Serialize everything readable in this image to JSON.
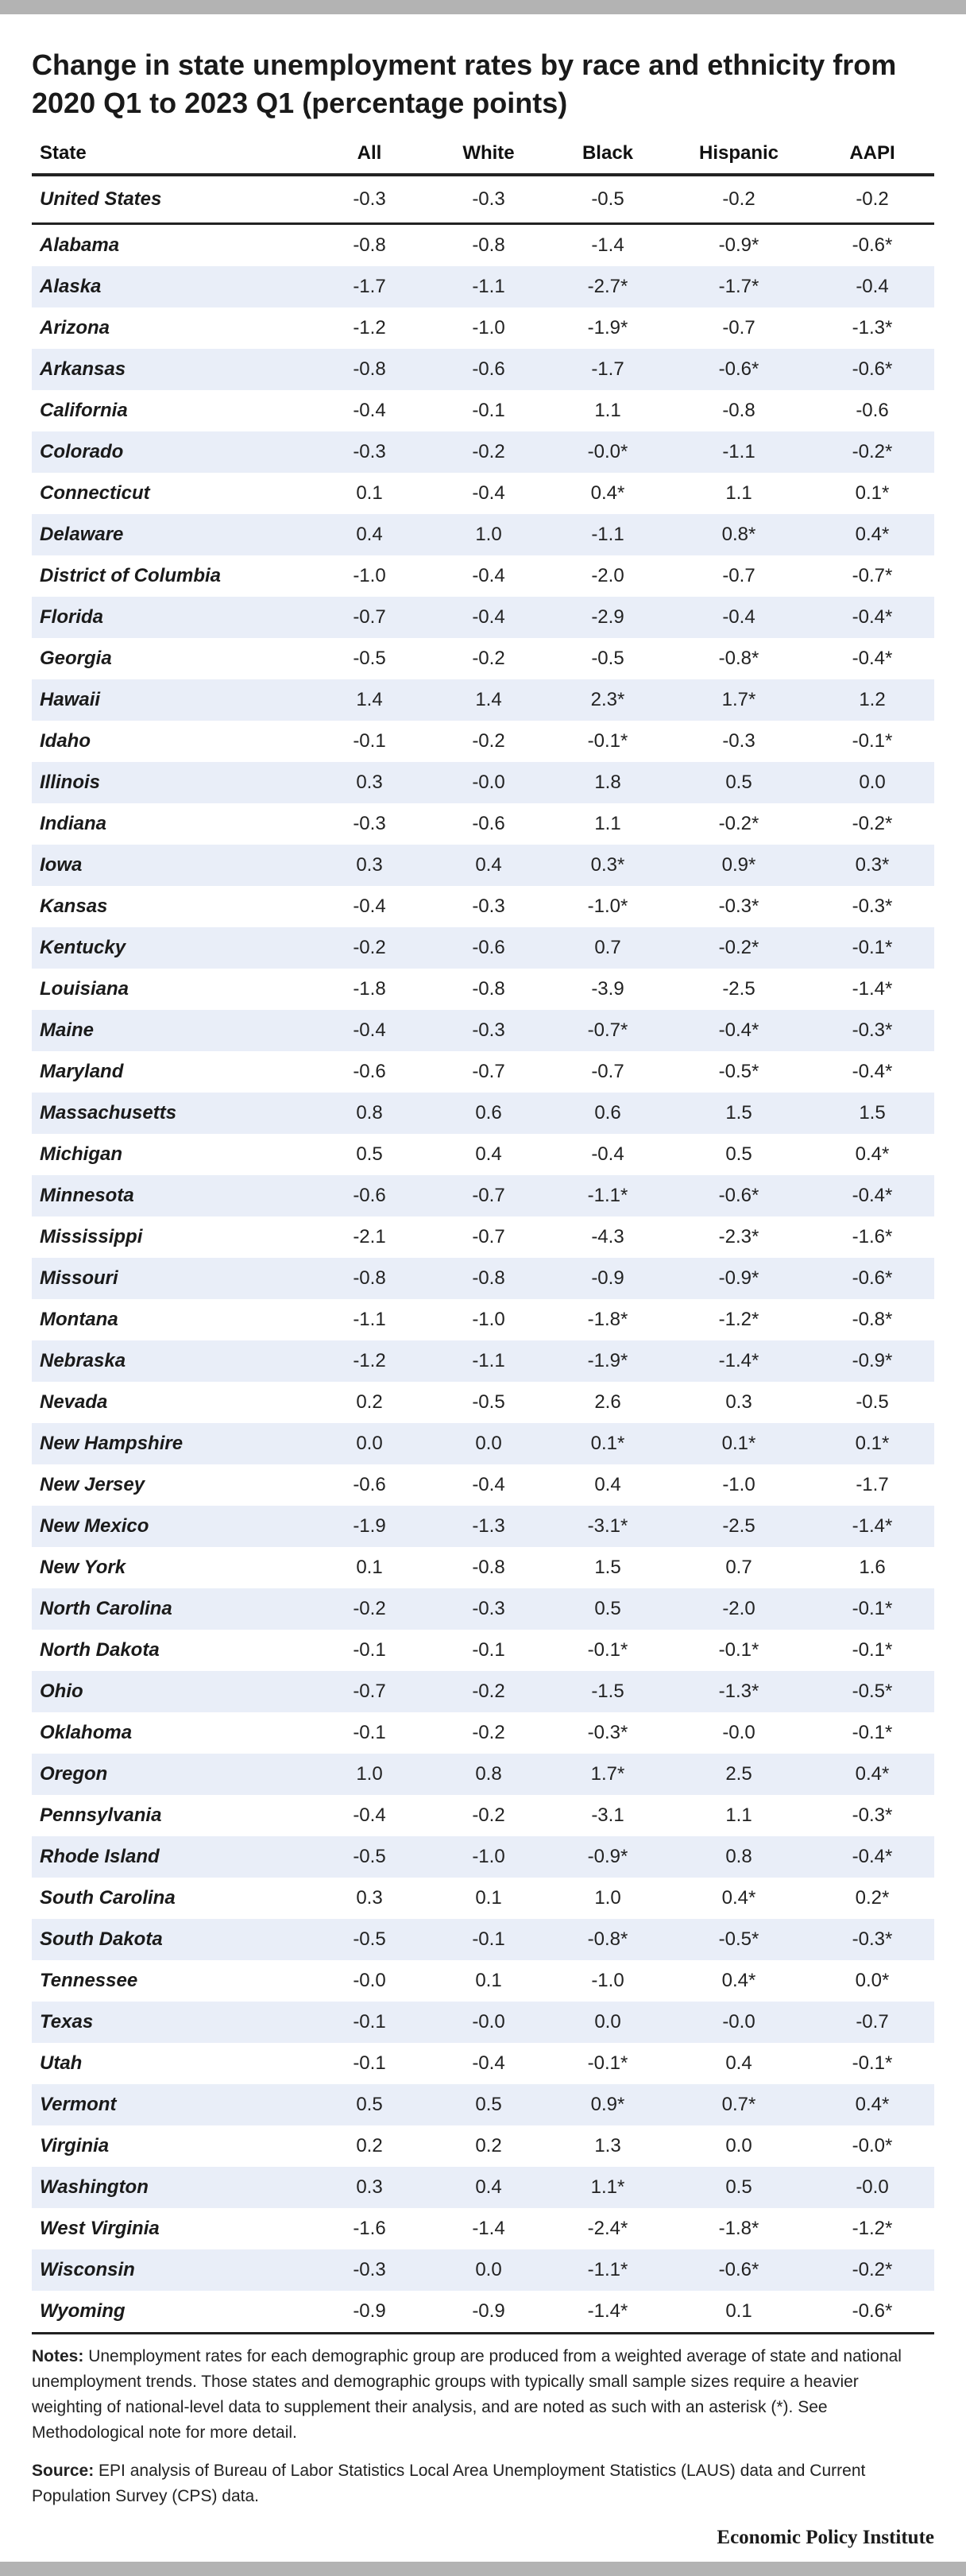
{
  "title": "Change in state unemployment rates by race and ethnicity from 2020 Q1 to 2023 Q1 (percentage points)",
  "notes_label": "Notes:",
  "notes_text": "Unemployment rates for each demographic group are produced from a weighted average of state and national unemployment trends. Those states and demographic groups with typically small sample sizes require a heavier weighting of national-level data to supplement their analysis, and are noted as such with an asterisk (*). See Methodological note for more detail.",
  "source_label": "Source:",
  "source_text": "EPI analysis of Bureau of Labor Statistics Local Area Unemployment Statistics (LAUS) data and Current Population Survey (CPS) data.",
  "brand": "Economic Policy Institute",
  "colors": {
    "row_shade": "#e9eef8",
    "rule": "#222222",
    "frame_bar": "#b3b3b3"
  },
  "chart_data": {
    "type": "table",
    "title": "Change in state unemployment rates by race and ethnicity from 2020 Q1 to 2023 Q1 (percentage points)",
    "columns": [
      "State",
      "All",
      "White",
      "Black",
      "Hispanic",
      "AAPI"
    ],
    "rows": [
      [
        "United States",
        "-0.3",
        "-0.3",
        "-0.5",
        "-0.2",
        "-0.2"
      ],
      [
        "Alabama",
        "-0.8",
        "-0.8",
        "-1.4",
        "-0.9*",
        "-0.6*"
      ],
      [
        "Alaska",
        "-1.7",
        "-1.1",
        "-2.7*",
        "-1.7*",
        "-0.4"
      ],
      [
        "Arizona",
        "-1.2",
        "-1.0",
        "-1.9*",
        "-0.7",
        "-1.3*"
      ],
      [
        "Arkansas",
        "-0.8",
        "-0.6",
        "-1.7",
        "-0.6*",
        "-0.6*"
      ],
      [
        "California",
        "-0.4",
        "-0.1",
        "1.1",
        "-0.8",
        "-0.6"
      ],
      [
        "Colorado",
        "-0.3",
        "-0.2",
        "-0.0*",
        "-1.1",
        "-0.2*"
      ],
      [
        "Connecticut",
        "0.1",
        "-0.4",
        "0.4*",
        "1.1",
        "0.1*"
      ],
      [
        "Delaware",
        "0.4",
        "1.0",
        "-1.1",
        "0.8*",
        "0.4*"
      ],
      [
        "District of Columbia",
        "-1.0",
        "-0.4",
        "-2.0",
        "-0.7",
        "-0.7*"
      ],
      [
        "Florida",
        "-0.7",
        "-0.4",
        "-2.9",
        "-0.4",
        "-0.4*"
      ],
      [
        "Georgia",
        "-0.5",
        "-0.2",
        "-0.5",
        "-0.8*",
        "-0.4*"
      ],
      [
        "Hawaii",
        "1.4",
        "1.4",
        "2.3*",
        "1.7*",
        "1.2"
      ],
      [
        "Idaho",
        "-0.1",
        "-0.2",
        "-0.1*",
        "-0.3",
        "-0.1*"
      ],
      [
        "Illinois",
        "0.3",
        "-0.0",
        "1.8",
        "0.5",
        "0.0"
      ],
      [
        "Indiana",
        "-0.3",
        "-0.6",
        "1.1",
        "-0.2*",
        "-0.2*"
      ],
      [
        "Iowa",
        "0.3",
        "0.4",
        "0.3*",
        "0.9*",
        "0.3*"
      ],
      [
        "Kansas",
        "-0.4",
        "-0.3",
        "-1.0*",
        "-0.3*",
        "-0.3*"
      ],
      [
        "Kentucky",
        "-0.2",
        "-0.6",
        "0.7",
        "-0.2*",
        "-0.1*"
      ],
      [
        "Louisiana",
        "-1.8",
        "-0.8",
        "-3.9",
        "-2.5",
        "-1.4*"
      ],
      [
        "Maine",
        "-0.4",
        "-0.3",
        "-0.7*",
        "-0.4*",
        "-0.3*"
      ],
      [
        "Maryland",
        "-0.6",
        "-0.7",
        "-0.7",
        "-0.5*",
        "-0.4*"
      ],
      [
        "Massachusetts",
        "0.8",
        "0.6",
        "0.6",
        "1.5",
        "1.5"
      ],
      [
        "Michigan",
        "0.5",
        "0.4",
        "-0.4",
        "0.5",
        "0.4*"
      ],
      [
        "Minnesota",
        "-0.6",
        "-0.7",
        "-1.1*",
        "-0.6*",
        "-0.4*"
      ],
      [
        "Mississippi",
        "-2.1",
        "-0.7",
        "-4.3",
        "-2.3*",
        "-1.6*"
      ],
      [
        "Missouri",
        "-0.8",
        "-0.8",
        "-0.9",
        "-0.9*",
        "-0.6*"
      ],
      [
        "Montana",
        "-1.1",
        "-1.0",
        "-1.8*",
        "-1.2*",
        "-0.8*"
      ],
      [
        "Nebraska",
        "-1.2",
        "-1.1",
        "-1.9*",
        "-1.4*",
        "-0.9*"
      ],
      [
        "Nevada",
        "0.2",
        "-0.5",
        "2.6",
        "0.3",
        "-0.5"
      ],
      [
        "New Hampshire",
        "0.0",
        "0.0",
        "0.1*",
        "0.1*",
        "0.1*"
      ],
      [
        "New Jersey",
        "-0.6",
        "-0.4",
        "0.4",
        "-1.0",
        "-1.7"
      ],
      [
        "New Mexico",
        "-1.9",
        "-1.3",
        "-3.1*",
        "-2.5",
        "-1.4*"
      ],
      [
        "New York",
        "0.1",
        "-0.8",
        "1.5",
        "0.7",
        "1.6"
      ],
      [
        "North Carolina",
        "-0.2",
        "-0.3",
        "0.5",
        "-2.0",
        "-0.1*"
      ],
      [
        "North Dakota",
        "-0.1",
        "-0.1",
        "-0.1*",
        "-0.1*",
        "-0.1*"
      ],
      [
        "Ohio",
        "-0.7",
        "-0.2",
        "-1.5",
        "-1.3*",
        "-0.5*"
      ],
      [
        "Oklahoma",
        "-0.1",
        "-0.2",
        "-0.3*",
        "-0.0",
        "-0.1*"
      ],
      [
        "Oregon",
        "1.0",
        "0.8",
        "1.7*",
        "2.5",
        "0.4*"
      ],
      [
        "Pennsylvania",
        "-0.4",
        "-0.2",
        "-3.1",
        "1.1",
        "-0.3*"
      ],
      [
        "Rhode Island",
        "-0.5",
        "-1.0",
        "-0.9*",
        "0.8",
        "-0.4*"
      ],
      [
        "South Carolina",
        "0.3",
        "0.1",
        "1.0",
        "0.4*",
        "0.2*"
      ],
      [
        "South Dakota",
        "-0.5",
        "-0.1",
        "-0.8*",
        "-0.5*",
        "-0.3*"
      ],
      [
        "Tennessee",
        "-0.0",
        "0.1",
        "-1.0",
        "0.4*",
        "0.0*"
      ],
      [
        "Texas",
        "-0.1",
        "-0.0",
        "0.0",
        "-0.0",
        "-0.7"
      ],
      [
        "Utah",
        "-0.1",
        "-0.4",
        "-0.1*",
        "0.4",
        "-0.1*"
      ],
      [
        "Vermont",
        "0.5",
        "0.5",
        "0.9*",
        "0.7*",
        "0.4*"
      ],
      [
        "Virginia",
        "0.2",
        "0.2",
        "1.3",
        "0.0",
        "-0.0*"
      ],
      [
        "Washington",
        "0.3",
        "0.4",
        "1.1*",
        "0.5",
        "-0.0"
      ],
      [
        "West Virginia",
        "-1.6",
        "-1.4",
        "-2.4*",
        "-1.8*",
        "-1.2*"
      ],
      [
        "Wisconsin",
        "-0.3",
        "0.0",
        "-1.1*",
        "-0.6*",
        "-0.2*"
      ],
      [
        "Wyoming",
        "-0.9",
        "-0.9",
        "-1.4*",
        "0.1",
        "-0.6*"
      ]
    ]
  }
}
